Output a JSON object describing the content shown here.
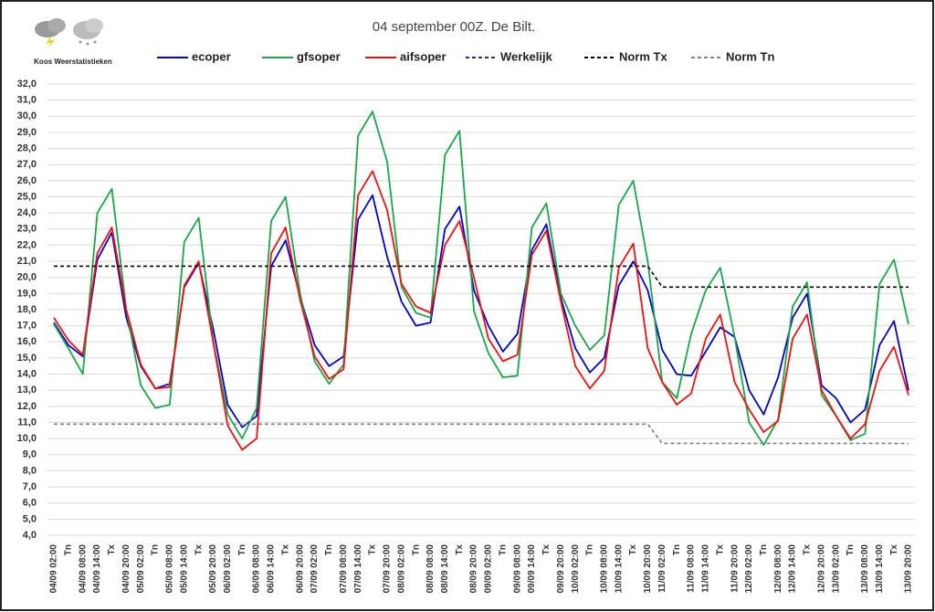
{
  "chart_data": {
    "type": "line",
    "title": "04 september 00Z. De Bilt.",
    "logo_text": "Koos Weerstatistieken",
    "categories": [
      "04/09 02:00",
      "Tn",
      "04/09 08:00",
      "04/09 14:00",
      "Tx",
      "04/09 20:00",
      "05/09 02:00",
      "Tn",
      "05/09 08:00",
      "05/09 14:00",
      "Tx",
      "05/09 20:00",
      "06/09 02:00",
      "Tn",
      "06/09 08:00",
      "06/09 14:00",
      "Tx",
      "06/09 20:00",
      "07/09 02:00",
      "Tn",
      "07/09 08:00",
      "07/09 14:00",
      "Tx",
      "07/09 20:00",
      "08/09 02:00",
      "Tn",
      "08/09 08:00",
      "08/09 14:00",
      "Tx",
      "08/09 20:00",
      "09/09 02:00",
      "Tn",
      "09/09 08:00",
      "09/09 14:00",
      "Tx",
      "09/09 20:00",
      "10/09 02:00",
      "Tn",
      "10/09 08:00",
      "10/09 14:00",
      "Tx",
      "10/09 20:00",
      "11/09 02:00",
      "Tn",
      "11/09 08:00",
      "11/09 14:00",
      "Tx",
      "11/09 20:00",
      "12/09 02:00",
      "Tn",
      "12/09 08:00",
      "12/09 14:00",
      "Tx",
      "12/09 20:00",
      "13/09 02:00",
      "Tn",
      "13/09 08:00",
      "13/09 14:00",
      "Tx",
      "13/09 20:00"
    ],
    "series": [
      {
        "name": "ecoper",
        "color": "#0000cc",
        "dashed": false,
        "values": [
          17.2,
          15.8,
          15.1,
          21.1,
          22.8,
          17.5,
          14.5,
          13.1,
          13.4,
          19.4,
          20.9,
          16.8,
          12.1,
          10.7,
          11.4,
          20.7,
          22.3,
          18.8,
          15.8,
          14.5,
          15.1,
          23.6,
          25.1,
          21.3,
          18.5,
          17.0,
          17.2,
          23.0,
          24.4,
          19.2,
          17.0,
          15.4,
          16.5,
          21.7,
          23.3,
          18.7,
          15.6,
          14.1,
          15.0,
          19.5,
          21.0,
          19.2,
          15.5,
          14.0,
          13.9,
          15.4,
          16.9,
          16.3,
          13.0,
          11.5,
          13.8,
          17.5,
          19.0,
          13.3,
          12.5,
          11.0,
          11.8,
          15.8,
          17.3,
          13.0
        ]
      },
      {
        "name": "gfsoper",
        "color": "#1aa64a",
        "dashed": false,
        "values": [
          17.1,
          15.6,
          14.0,
          24.0,
          25.5,
          18.0,
          13.3,
          11.9,
          12.1,
          22.2,
          23.7,
          16.0,
          11.5,
          10.0,
          11.9,
          23.5,
          25.0,
          19.0,
          14.8,
          13.4,
          14.6,
          28.8,
          30.3,
          27.2,
          19.4,
          17.8,
          17.5,
          27.6,
          29.1,
          17.9,
          15.3,
          13.8,
          13.9,
          23.1,
          24.6,
          19.0,
          17.0,
          15.5,
          16.4,
          24.5,
          26.0,
          21.0,
          13.5,
          12.5,
          16.5,
          19.2,
          20.6,
          16.3,
          11.0,
          9.6,
          11.2,
          18.2,
          19.7,
          12.7,
          11.4,
          9.9,
          10.3,
          19.6,
          21.1,
          17.1
        ]
      },
      {
        "name": "aifsoper",
        "color": "#ee1111",
        "dashed": false,
        "values": [
          17.5,
          16.1,
          15.2,
          21.5,
          23.1,
          18.0,
          14.6,
          13.1,
          13.2,
          19.5,
          21.0,
          16.0,
          10.8,
          9.3,
          10.0,
          21.5,
          23.1,
          18.6,
          15.1,
          13.7,
          14.3,
          25.1,
          26.6,
          24.2,
          19.6,
          18.2,
          17.8,
          22.0,
          23.5,
          20.0,
          16.2,
          14.8,
          15.2,
          21.4,
          22.9,
          18.5,
          14.5,
          13.1,
          14.2,
          20.6,
          22.1,
          15.6,
          13.5,
          12.1,
          12.8,
          16.2,
          17.7,
          13.5,
          11.8,
          10.4,
          11.1,
          16.2,
          17.7,
          13.0,
          11.4,
          10.0,
          10.9,
          14.2,
          15.7,
          12.7
        ]
      },
      {
        "name": "Werkelijk",
        "color": "#1f3864",
        "dashed": true,
        "values": [
          null,
          null,
          null,
          null,
          null,
          null,
          null,
          null,
          null,
          null,
          null,
          null,
          null,
          null,
          null,
          null,
          null,
          null,
          null,
          null,
          null,
          null,
          null,
          null,
          null,
          null,
          null,
          null,
          null,
          null,
          null,
          null,
          null,
          null,
          null,
          null,
          null,
          null,
          null,
          null,
          null,
          null,
          null,
          null,
          null,
          null,
          null,
          null,
          null,
          null,
          null,
          null,
          null,
          null,
          null,
          null,
          null,
          null,
          null,
          null
        ]
      },
      {
        "name": "Norm Tx",
        "color": "#000000",
        "dashed": true,
        "values": [
          20.7,
          20.7,
          20.7,
          20.7,
          20.7,
          20.7,
          20.7,
          20.7,
          20.7,
          20.7,
          20.7,
          20.7,
          20.7,
          20.7,
          20.7,
          20.7,
          20.7,
          20.7,
          20.7,
          20.7,
          20.7,
          20.7,
          20.7,
          20.7,
          20.7,
          20.7,
          20.7,
          20.7,
          20.7,
          20.7,
          20.7,
          20.7,
          20.7,
          20.7,
          20.7,
          20.7,
          20.7,
          20.7,
          20.7,
          20.7,
          20.7,
          20.7,
          19.4,
          19.4,
          19.4,
          19.4,
          19.4,
          19.4,
          19.4,
          19.4,
          19.4,
          19.4,
          19.4,
          19.4,
          19.4,
          19.4,
          19.4,
          19.4,
          19.4,
          19.4
        ]
      },
      {
        "name": "Norm Tn",
        "color": "#808080",
        "dashed": true,
        "values": [
          10.9,
          10.9,
          10.9,
          10.9,
          10.9,
          10.9,
          10.9,
          10.9,
          10.9,
          10.9,
          10.9,
          10.9,
          10.9,
          10.9,
          10.9,
          10.9,
          10.9,
          10.9,
          10.9,
          10.9,
          10.9,
          10.9,
          10.9,
          10.9,
          10.9,
          10.9,
          10.9,
          10.9,
          10.9,
          10.9,
          10.9,
          10.9,
          10.9,
          10.9,
          10.9,
          10.9,
          10.9,
          10.9,
          10.9,
          10.9,
          10.9,
          10.9,
          9.7,
          9.7,
          9.7,
          9.7,
          9.7,
          9.7,
          9.7,
          9.7,
          9.7,
          9.7,
          9.7,
          9.7,
          9.7,
          9.7,
          9.7,
          9.7,
          9.7,
          9.7
        ]
      }
    ],
    "ylim": [
      4,
      32
    ],
    "yticks": [
      {
        "value": 4,
        "label": "4,0"
      },
      {
        "value": 5,
        "label": "5,0"
      },
      {
        "value": 6,
        "label": "6,0"
      },
      {
        "value": 7,
        "label": "7,0"
      },
      {
        "value": 8,
        "label": "8,0"
      },
      {
        "value": 9,
        "label": "9,0"
      },
      {
        "value": 10,
        "label": "10,0"
      },
      {
        "value": 11,
        "label": "11,0"
      },
      {
        "value": 12,
        "label": "12,0"
      },
      {
        "value": 13,
        "label": "13,0"
      },
      {
        "value": 14,
        "label": "14,0"
      },
      {
        "value": 15,
        "label": "15,0"
      },
      {
        "value": 16,
        "label": "16,0"
      },
      {
        "value": 17,
        "label": "17,0"
      },
      {
        "value": 18,
        "label": "18,0"
      },
      {
        "value": 19,
        "label": "19,0"
      },
      {
        "value": 20,
        "label": "20,0"
      },
      {
        "value": 21,
        "label": "21,0"
      },
      {
        "value": 22,
        "label": "22,0"
      },
      {
        "value": 23,
        "label": "23,0"
      },
      {
        "value": 24,
        "label": "24,0"
      },
      {
        "value": 25,
        "label": "25,0"
      },
      {
        "value": 26,
        "label": "26,0"
      },
      {
        "value": 27,
        "label": "27,0"
      },
      {
        "value": 28,
        "label": "28,0"
      },
      {
        "value": 29,
        "label": "29,0"
      },
      {
        "value": 30,
        "label": "30,0"
      },
      {
        "value": 31,
        "label": "31,0"
      },
      {
        "value": 32,
        "label": "32,0"
      }
    ],
    "grid": true,
    "legend": "top"
  }
}
